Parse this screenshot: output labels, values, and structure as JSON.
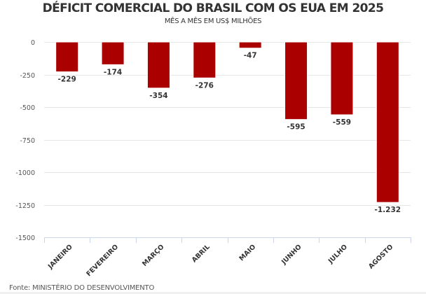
{
  "chart_data": {
    "type": "bar",
    "title": "DÉFICIT COMERCIAL DO BRASIL COM OS EUA EM 2025",
    "subtitle": "MÊS A MÊS EM US$ MILHÕES",
    "xlabel": "",
    "ylabel": "",
    "categories": [
      "JANEIRO",
      "FEVEREIRO",
      "MARÇO",
      "ABRIL",
      "MAIO",
      "JUNHO",
      "JULHO",
      "AGOSTO"
    ],
    "values": [
      -229,
      -174,
      -354,
      -276,
      -47,
      -595,
      -559,
      -1232
    ],
    "data_labels": [
      "-229",
      "-174",
      "-354",
      "-276",
      "-47",
      "-595",
      "-559",
      "-1.232"
    ],
    "ylim": [
      -1500,
      0
    ],
    "yticks": [
      0,
      -250,
      -500,
      -750,
      -1000,
      -1250,
      -1500
    ],
    "ytick_labels": [
      "0",
      "-250",
      "-500",
      "-750",
      "-1000",
      "-1250",
      "-1500"
    ],
    "grid": true,
    "legend": "none",
    "colors": {
      "bar": "#aa0000",
      "grid": "#e6e6e6",
      "axis": "#ccd6eb"
    },
    "source": "Fonte: MINISTÉRIO DO DESENVOLVIMENTO"
  }
}
